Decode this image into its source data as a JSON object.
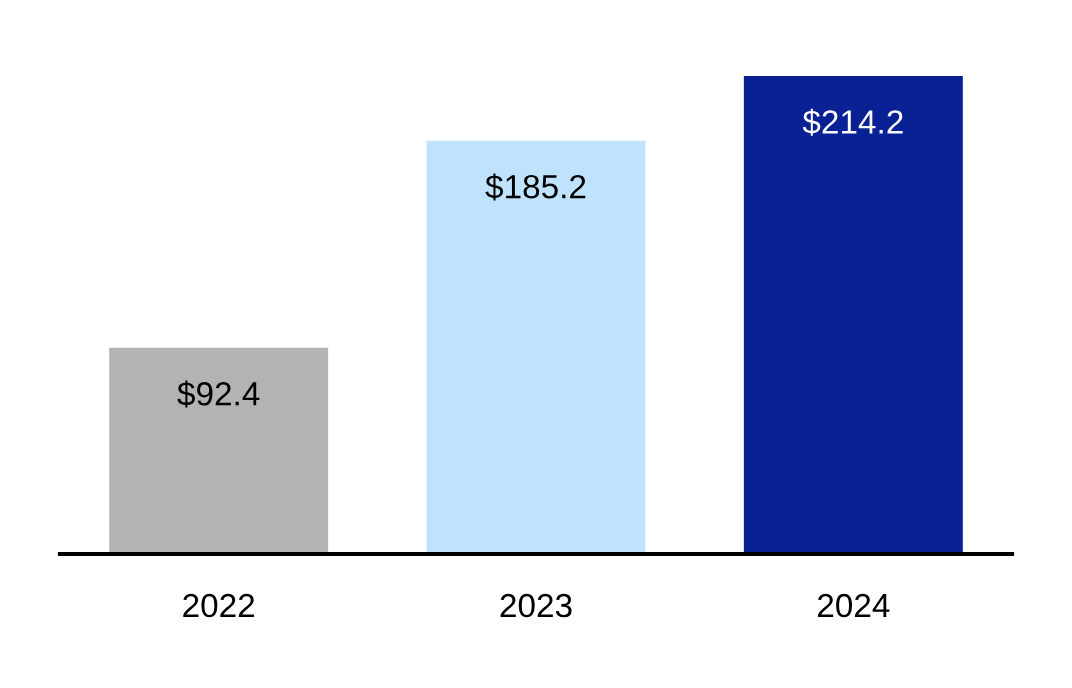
{
  "chart_data": {
    "type": "bar",
    "categories": [
      "2022",
      "2023",
      "2024"
    ],
    "values": [
      92.4,
      185.2,
      214.2
    ],
    "colors": [
      "#b3b3b3",
      "#bfe3fd",
      "#0a2196"
    ],
    "value_labels": [
      "$92.4",
      "$185.2",
      "$214.2"
    ],
    "grid": false,
    "legend": false
  }
}
